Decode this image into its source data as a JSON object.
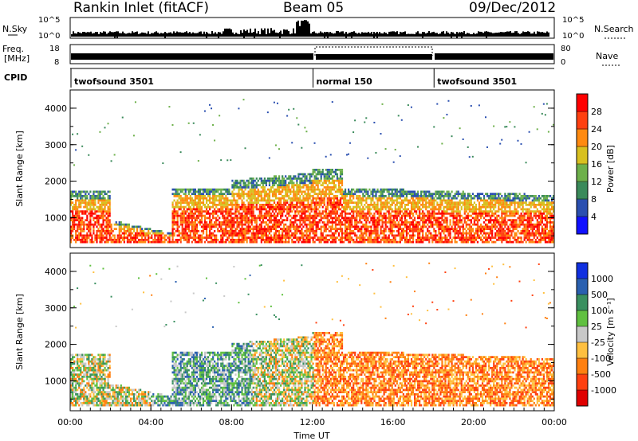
{
  "header": {
    "station": "Rankin Inlet (fitACF)",
    "beam": "Beam 05",
    "date": "09/Dec/2012"
  },
  "top_panels": {
    "nsky_label": "N.Sky",
    "nsky_ticks": [
      "10^5",
      "10^0"
    ],
    "nsearch_label": "N.Search",
    "nsearch_ticks": [
      "10^5",
      "10^0"
    ],
    "freq_label_1": "Freq.",
    "freq_label_2": "[MHz]",
    "freq_ticks": [
      "18",
      "8"
    ],
    "nave_label": "Nave",
    "nave_ticks": [
      "80",
      "0"
    ],
    "cpid_label": "CPID",
    "cpid_segments": [
      {
        "label": "twofsound 3501",
        "start_hour": 0,
        "end_hour": 12
      },
      {
        "label": "normal 150",
        "start_hour": 12,
        "end_hour": 18
      },
      {
        "label": "twofsound 3501",
        "start_hour": 18,
        "end_hour": 24
      }
    ]
  },
  "x_axis": {
    "label": "Time UT",
    "ticks": [
      "00:00",
      "04:00",
      "08:00",
      "12:00",
      "16:00",
      "20:00",
      "00:00"
    ]
  },
  "chart_data": [
    {
      "type": "heatmap",
      "quantity": "power",
      "ylabel": "Slant Range [km]",
      "yticks": [
        "1000",
        "2000",
        "3000",
        "4000"
      ],
      "xrange_hours": [
        0,
        24
      ],
      "yrange_km": [
        180,
        4500
      ],
      "colorbar": {
        "label": "Power [dB]",
        "ticks": [
          "4",
          "8",
          "12",
          "16",
          "20",
          "24",
          "28"
        ],
        "colors": [
          "#1010ff",
          "#2a4fb0",
          "#3a8a5a",
          "#6db04a",
          "#d8c020",
          "#ff8a10",
          "#ff4010",
          "#ff0000"
        ]
      }
    },
    {
      "type": "heatmap",
      "quantity": "velocity",
      "ylabel": "Slant Range [km]",
      "yticks": [
        "1000",
        "2000",
        "3000",
        "4000"
      ],
      "xrange_hours": [
        0,
        24
      ],
      "yrange_km": [
        180,
        4500
      ],
      "colorbar": {
        "label": "Velocity [m s⁻¹]",
        "ticks": [
          "1000",
          "500",
          "100",
          "25",
          "-25",
          "-100",
          "-500",
          "-1000"
        ],
        "colors": [
          "#1030e0",
          "#2a60b0",
          "#3a9060",
          "#60c040",
          "#c8c8c8",
          "#ffc040",
          "#ff8010",
          "#ff4010",
          "#e00000"
        ]
      }
    }
  ]
}
